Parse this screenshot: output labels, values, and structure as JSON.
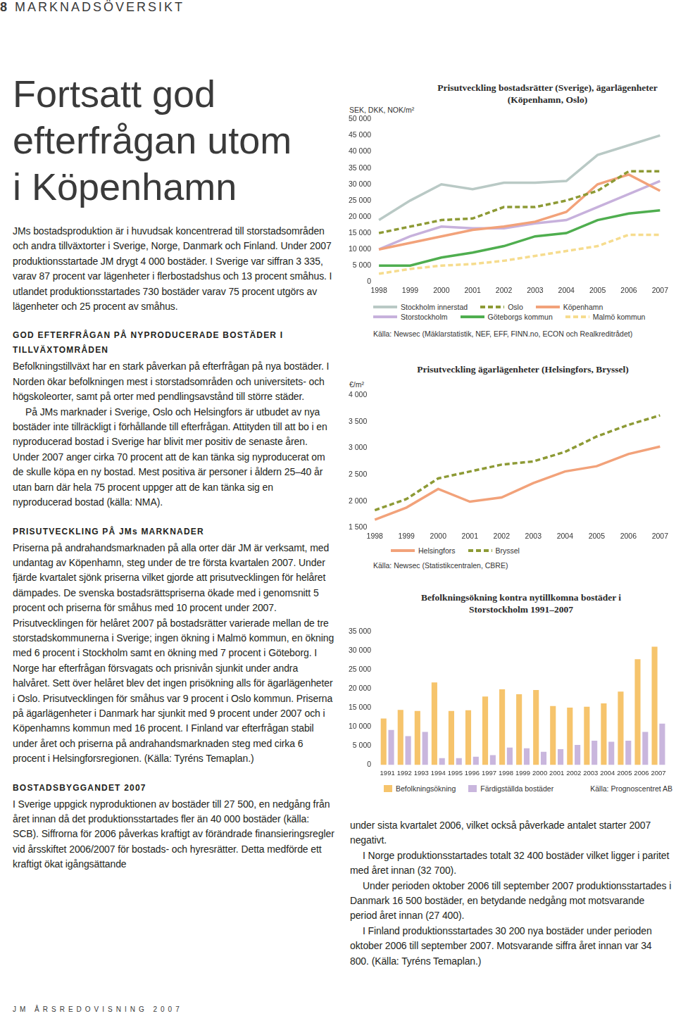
{
  "page": {
    "header": {
      "number": "8",
      "section": "MARKNADSÖVERSIKT"
    },
    "title_lines": [
      "Fortsatt god",
      "efterfrågan utom",
      "i Köpenhamn"
    ],
    "intro": "JMs bostadsproduktion är i huvudsak koncentrerad till storstadsområden och andra tillväxtorter i Sverige, Norge, Danmark och Finland. Under 2007 produktionsstartade JM drygt 4 000 bostäder. I Sverige var siffran 3 335, varav 87 procent var lägenheter i flerbostadshus och 13 procent småhus. I utlandet produktionsstartades 730 bostäder varav 75 procent utgörs av lägenheter och 25 procent av småhus.",
    "sections": [
      {
        "heading": "GOD EFTERFRÅGAN PÅ NYPRODUCERADE BOSTÄDER I TILLVÄXTOMRÅDEN",
        "paragraphs": [
          "Befolkningstillväxt har en stark påverkan på efterfrågan på nya bostäder. I Norden ökar befolkningen mest i storstadsområden och universitets- och högskoleorter, samt på orter med pendlingsavstånd till större städer.",
          "På JMs marknader i Sverige, Oslo och Helsingfors är utbudet av nya bostäder inte tillräckligt i förhållande till efterfrågan. Attityden till att bo i en nyproducerad bostad i Sverige har blivit mer positiv de senaste åren. Under 2007 anger cirka 70 procent att de kan tänka sig nyproducerat om de skulle köpa en ny bostad. Mest positiva är personer i åldern 25–40 år utan barn där hela 75 procent uppger att de kan tänka sig en nyproducerad bostad (källa: NMA)."
        ]
      },
      {
        "heading": "PRISUTVECKLING PÅ JMs MARKNADER",
        "paragraphs": [
          "Priserna på andrahandsmarknaden på alla orter där JM är verksamt, med undantag av Köpenhamn, steg under de tre första kvartalen 2007. Under fjärde kvartalet sjönk priserna vilket gjorde att prisutvecklingen för helåret dämpades. De svenska bostadsrättspriserna ökade med i genomsnitt 5 procent och priserna för småhus med 10 procent under 2007. Prisutvecklingen för helåret 2007 på bostadsrätter varierade mellan de tre storstadskommunerna i Sverige; ingen ökning i Malmö kommun, en ökning med 6 procent i Stockholm samt en ökning med 7 procent i Göteborg. I Norge har efterfrågan försvagats och prisnivån sjunkit under andra halvåret. Sett över helåret blev det ingen prisökning alls för ägarlägenheter i Oslo. Prisutvecklingen för småhus var 9 procent i Oslo kommun. Priserna på ägarlägenheter i Danmark har sjunkit med 9 procent under 2007 och i Köpenhamns kommun med 16 procent. I Finland var efterfrågan stabil under året och priserna på andrahandsmarknaden steg med cirka 6 procent i Helsingforsregionen. (Källa: Tyréns Temaplan.)"
        ]
      },
      {
        "heading": "BOSTADSBYGGANDET 2007",
        "paragraphs": [
          "I Sverige uppgick nyproduktionen av bostäder till 27 500, en nedgång från året innan då det produktionsstartades fler än 40 000 bostäder (källa: SCB). Siffrorna för 2006 påverkas kraftigt av förändrade finansieringsregler vid årsskiftet 2006/2007 för bostads- och hyresrätter. Detta medförde ett kraftigt ökat igångsättande"
        ]
      }
    ],
    "right_column_paragraphs": [
      "under sista kvartalet 2006, vilket också påverkade antalet starter 2007 negativt.",
      "I Norge produktionsstartades totalt 32 400 bostäder vilket ligger i paritet med året innan (32 700).",
      "Under perioden oktober 2006 till september 2007 produktionsstartades i Danmark 16 500 bostäder, en betydande nedgång mot motsvarande period året innan (27 400).",
      "I Finland produktionsstartades 30 200 nya bostäder under perioden oktober 2006 till september 2007. Motsvarande siffra året innan var 34 800. (Källa: Tyréns Temaplan.)"
    ],
    "footer": "JM ÅRSREDOVISNING 2007"
  },
  "chart_data": [
    {
      "type": "line",
      "title": "Prisutveckling bostadsrätter (Sverige), ägarlägenheter (Köpenhamn, Oslo)",
      "y_label": "SEK, DKK, NOK/m²",
      "categories": [
        "1998",
        "1999",
        "2000",
        "2001",
        "2002",
        "2003",
        "2004",
        "2005",
        "2006",
        "2007"
      ],
      "series": [
        {
          "name": "Stockholm innerstad",
          "color": "#b9c9c5",
          "line_style": "solid",
          "values": [
            19000,
            25000,
            30000,
            28500,
            30500,
            30500,
            31000,
            39000,
            42000,
            45000
          ]
        },
        {
          "name": "Oslo",
          "color": "#8d9a35",
          "line_style": "dashed",
          "values": [
            15000,
            17000,
            19000,
            19500,
            23000,
            23000,
            25000,
            28000,
            34000,
            34000
          ]
        },
        {
          "name": "Köpenhamn",
          "color": "#f2a27a",
          "line_style": "solid",
          "values": [
            10000,
            12000,
            14000,
            16000,
            17000,
            18500,
            21500,
            30000,
            33000,
            28000
          ]
        },
        {
          "name": "Storstockholm",
          "color": "#c7b1dc",
          "line_style": "solid",
          "values": [
            10000,
            14000,
            17000,
            16500,
            16500,
            18000,
            19000,
            23000,
            27000,
            31000
          ]
        },
        {
          "name": "Göteborgs kommun",
          "color": "#4fae4f",
          "line_style": "solid",
          "values": [
            5000,
            5000,
            7500,
            9000,
            11000,
            14000,
            15000,
            19000,
            21000,
            22000
          ]
        },
        {
          "name": "Malmö kommun",
          "color": "#f6dc8e",
          "line_style": "dashed",
          "values": [
            2500,
            4000,
            5000,
            5500,
            6500,
            8000,
            9500,
            11000,
            14500,
            14500
          ]
        }
      ],
      "ylim": [
        0,
        50000
      ],
      "yticks": [
        0,
        {
          "value": 5000,
          "label": "5 000"
        },
        {
          "value": 10000,
          "label": "10 000"
        },
        {
          "value": 15000,
          "label": "15 000"
        },
        {
          "value": 20000,
          "label": "20 000"
        },
        {
          "value": 25000,
          "label": "25 000"
        },
        {
          "value": 30000,
          "label": "30 000"
        },
        {
          "value": 35000,
          "label": "35 000"
        },
        {
          "value": 40000,
          "label": "40 000"
        },
        {
          "value": 45000,
          "label": "45 000"
        },
        {
          "value": 50000,
          "label": "50 000"
        }
      ],
      "grid": false,
      "legend": "bottom",
      "source": "Källa: Newsec (Mäklarstatistik, NEF, EFF, FINN.no, ECON och Realkreditrådet)"
    },
    {
      "type": "line",
      "title": "Prisutveckling ägarlägenheter (Helsingfors, Bryssel)",
      "y_label": "€/m²",
      "categories": [
        "1998",
        "1999",
        "2000",
        "2001",
        "2002",
        "2003",
        "2004",
        "2005",
        "2006",
        "2007"
      ],
      "series": [
        {
          "name": "Helsingfors",
          "color": "#f2a27a",
          "line_style": "solid",
          "values": [
            1650,
            1880,
            2230,
            1990,
            2070,
            2340,
            2560,
            2660,
            2890,
            3030
          ]
        },
        {
          "name": "Bryssel",
          "color": "#8d9a35",
          "line_style": "dashed",
          "values": [
            1830,
            2040,
            2430,
            2560,
            2690,
            2750,
            2930,
            3220,
            3440,
            3620
          ]
        }
      ],
      "ylim": [
        1500,
        4000
      ],
      "yticks": [
        {
          "value": 1500,
          "label": "1 500"
        },
        {
          "value": 2000,
          "label": "2 000"
        },
        {
          "value": 2500,
          "label": "2 500"
        },
        {
          "value": 3000,
          "label": "3 000"
        },
        {
          "value": 3500,
          "label": "3 500"
        },
        {
          "value": 4000,
          "label": "4 000"
        }
      ],
      "grid": false,
      "legend": "bottom",
      "source": "Källa: Newsec (Statistikcentralen, CBRE)"
    },
    {
      "type": "bar",
      "title": "Befolkningsökning kontra nytillkomna bostäder i Storstockholm 1991–2007",
      "categories": [
        "1991",
        "1992",
        "1993",
        "1994",
        "1995",
        "1996",
        "1997",
        "1998",
        "1999",
        "2000",
        "2001",
        "2002",
        "2003",
        "2004",
        "2005",
        "2006",
        "2007"
      ],
      "series": [
        {
          "name": "Befolkningsökning",
          "color": "#f6c46c",
          "values": [
            12200,
            14500,
            14200,
            21700,
            14200,
            14400,
            18000,
            19900,
            18600,
            19700,
            15500,
            15100,
            15300,
            16200,
            19300,
            27800,
            31100
          ]
        },
        {
          "name": "Färdigställda bostäder",
          "color": "#c9b6dd",
          "values": [
            9200,
            7600,
            8700,
            1800,
            1800,
            2200,
            2600,
            4600,
            4400,
            3500,
            4200,
            5300,
            6400,
            6100,
            6400,
            8700,
            10900
          ]
        }
      ],
      "ylim": [
        0,
        35000
      ],
      "yticks": [
        0,
        {
          "value": 5000,
          "label": "5 000"
        },
        {
          "value": 10000,
          "label": "10 000"
        },
        {
          "value": 15000,
          "label": "15 000"
        },
        {
          "value": 20000,
          "label": "20 000"
        },
        {
          "value": 25000,
          "label": "25 000"
        },
        {
          "value": 30000,
          "label": "30 000"
        },
        {
          "value": 35000,
          "label": "35 000"
        }
      ],
      "grid": false,
      "legend": "bottom",
      "source": "Källa: Prognoscentret AB"
    }
  ]
}
